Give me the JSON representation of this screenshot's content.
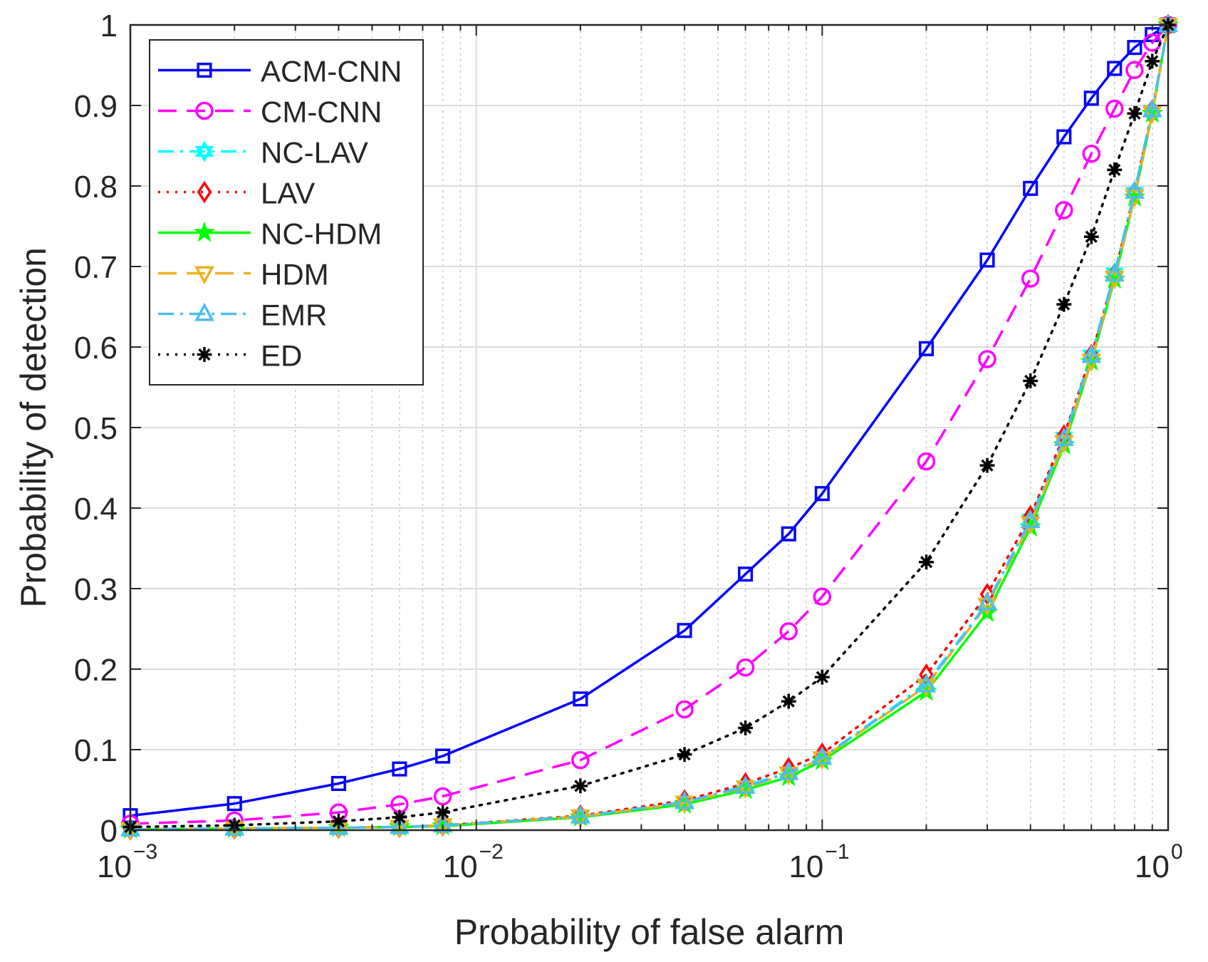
{
  "chart_data": {
    "type": "line",
    "xscale": "log",
    "title": "",
    "xlabel": "Probability of false alarm",
    "ylabel": "Probability of detection",
    "xlim": [
      0.001,
      1
    ],
    "ylim": [
      0,
      1
    ],
    "grid": true,
    "legend_position": "top-left",
    "x_ticks": [
      {
        "value": 0.001,
        "base": "10",
        "exp": "−3"
      },
      {
        "value": 0.01,
        "base": "10",
        "exp": "−2"
      },
      {
        "value": 0.1,
        "base": "10",
        "exp": "−1"
      },
      {
        "value": 1,
        "base": "10",
        "exp": "0"
      }
    ],
    "y_ticks": [
      {
        "value": 0,
        "label": "0"
      },
      {
        "value": 0.1,
        "label": "0.1"
      },
      {
        "value": 0.2,
        "label": "0.2"
      },
      {
        "value": 0.3,
        "label": "0.3"
      },
      {
        "value": 0.4,
        "label": "0.4"
      },
      {
        "value": 0.5,
        "label": "0.5"
      },
      {
        "value": 0.6,
        "label": "0.6"
      },
      {
        "value": 0.7,
        "label": "0.7"
      },
      {
        "value": 0.8,
        "label": "0.8"
      },
      {
        "value": 0.9,
        "label": "0.9"
      },
      {
        "value": 1,
        "label": "1"
      }
    ],
    "x": [
      0.001,
      0.002,
      0.004,
      0.006,
      0.008,
      0.02,
      0.04,
      0.06,
      0.08,
      0.1,
      0.2,
      0.3,
      0.4,
      0.5,
      0.6,
      0.7,
      0.8,
      0.9,
      1.0
    ],
    "series": [
      {
        "name": "ACM-CNN",
        "color": "#0000ff",
        "dash": "solid",
        "marker": "square",
        "values": [
          0.018,
          0.033,
          0.058,
          0.076,
          0.092,
          0.163,
          0.248,
          0.318,
          0.368,
          0.418,
          0.598,
          0.708,
          0.797,
          0.861,
          0.909,
          0.946,
          0.972,
          0.988,
          1.0
        ]
      },
      {
        "name": "CM-CNN",
        "color": "#ff00ff",
        "dash": "dashed",
        "marker": "circle",
        "values": [
          0.008,
          0.012,
          0.022,
          0.032,
          0.042,
          0.087,
          0.15,
          0.202,
          0.247,
          0.29,
          0.458,
          0.585,
          0.685,
          0.77,
          0.84,
          0.896,
          0.944,
          0.978,
          1.0
        ]
      },
      {
        "name": "NC-LAV",
        "color": "#00ffff",
        "dash": "dashdot",
        "marker": "hexagram",
        "values": [
          0.001,
          0.002,
          0.003,
          0.004,
          0.006,
          0.017,
          0.035,
          0.055,
          0.072,
          0.09,
          0.182,
          0.282,
          0.386,
          0.488,
          0.59,
          0.692,
          0.792,
          0.894,
          1.0
        ]
      },
      {
        "name": "LAV",
        "color": "#ff0000",
        "dash": "dotted",
        "marker": "diamond",
        "values": [
          0.001,
          0.002,
          0.003,
          0.004,
          0.006,
          0.018,
          0.037,
          0.058,
          0.077,
          0.095,
          0.193,
          0.293,
          0.39,
          0.49,
          0.59,
          0.69,
          0.792,
          0.894,
          1.0
        ]
      },
      {
        "name": "NC-HDM",
        "color": "#00ff00",
        "dash": "solid",
        "marker": "pentagram",
        "values": [
          0.001,
          0.002,
          0.003,
          0.004,
          0.005,
          0.016,
          0.032,
          0.05,
          0.066,
          0.086,
          0.172,
          0.27,
          0.376,
          0.478,
          0.582,
          0.684,
          0.786,
          0.89,
          1.0
        ]
      },
      {
        "name": "HDM",
        "color": "#edb120",
        "dash": "dashed",
        "marker": "triangle-down",
        "values": [
          0.001,
          0.002,
          0.003,
          0.004,
          0.006,
          0.017,
          0.034,
          0.053,
          0.07,
          0.089,
          0.179,
          0.28,
          0.381,
          0.482,
          0.583,
          0.686,
          0.787,
          0.891,
          1.0
        ]
      },
      {
        "name": "EMR",
        "color": "#4dbeee",
        "dash": "dashdot",
        "marker": "triangle-up",
        "values": [
          0.001,
          0.002,
          0.003,
          0.004,
          0.006,
          0.017,
          0.035,
          0.054,
          0.071,
          0.09,
          0.18,
          0.282,
          0.384,
          0.486,
          0.589,
          0.69,
          0.793,
          0.894,
          1.0
        ]
      },
      {
        "name": "ED",
        "color": "#000000",
        "dash": "dotted",
        "marker": "asterisk",
        "values": [
          0.004,
          0.006,
          0.011,
          0.016,
          0.022,
          0.055,
          0.094,
          0.127,
          0.16,
          0.19,
          0.333,
          0.453,
          0.558,
          0.653,
          0.737,
          0.82,
          0.89,
          0.955,
          1.0
        ]
      }
    ]
  }
}
